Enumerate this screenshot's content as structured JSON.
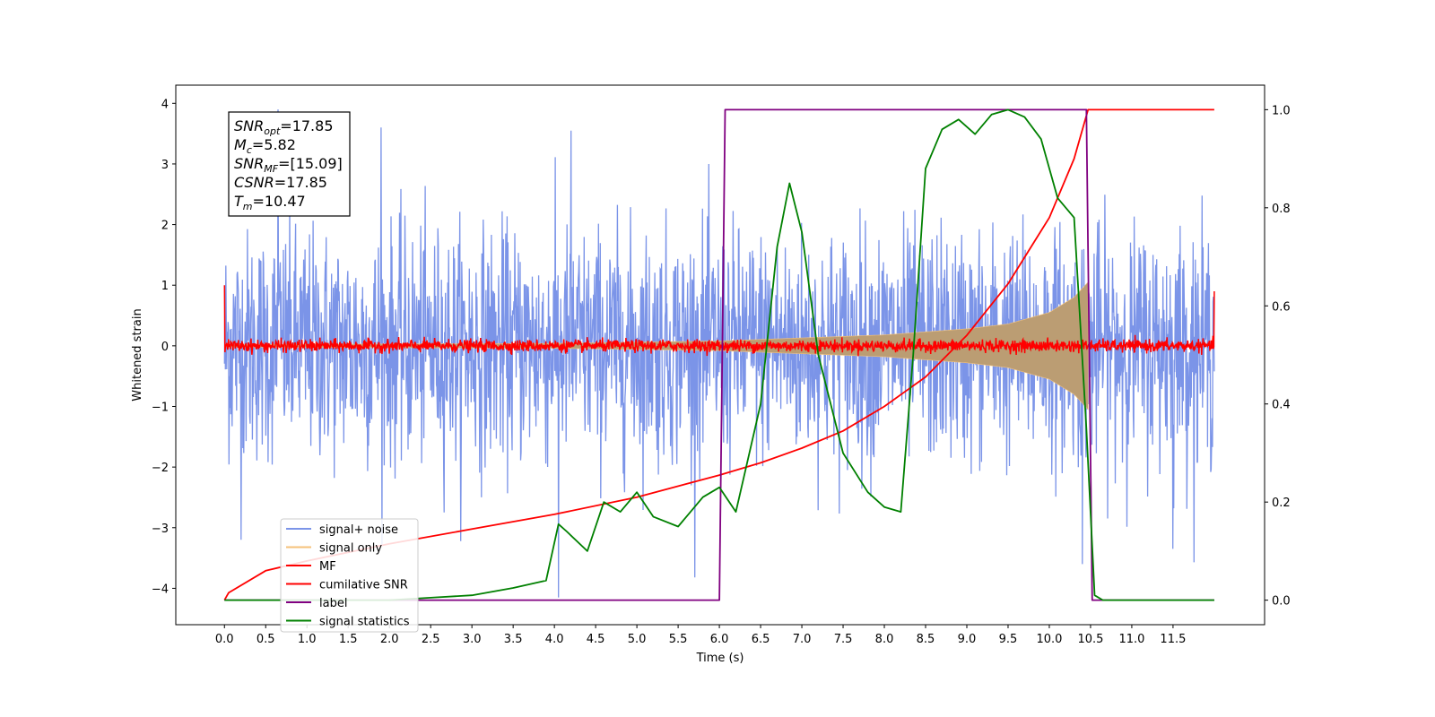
{
  "chart_data": {
    "type": "line",
    "xlabel": "Time (s)",
    "ylabel_left": "Whitened strain",
    "ylabel_right": "",
    "xlim": [
      -0.59,
      12.61
    ],
    "ylim_left": [
      -4.6,
      4.3
    ],
    "ylim_right": [
      -0.05,
      1.05
    ],
    "x_ticks": [
      "0.0",
      "0.5",
      "1.0",
      "1.5",
      "2.0",
      "2.5",
      "3.0",
      "3.5",
      "4.0",
      "4.5",
      "5.0",
      "5.5",
      "6.0",
      "6.5",
      "7.0",
      "7.5",
      "8.0",
      "8.5",
      "9.0",
      "9.5",
      "10.0",
      "10.5",
      "11.0",
      "11.5"
    ],
    "y_ticks_left": [
      "4",
      "3",
      "2",
      "1",
      "0",
      "−1",
      "−2",
      "−3",
      "−4"
    ],
    "y_ticks_right": [
      "1.0",
      "0.8",
      "0.6",
      "0.4",
      "0.2",
      "0.0"
    ],
    "grid": false,
    "legend_position": "lower-left",
    "annotation": {
      "lines": [
        {
          "sym": "SNR",
          "sub": "opt",
          "value": "=17.85"
        },
        {
          "sym": "M",
          "sub": "c",
          "value": "=5.82"
        },
        {
          "sym": "SNR",
          "sub": "MF",
          "value": "=[15.09]"
        },
        {
          "sym": "CSNR",
          "sub": "",
          "value": "=17.85"
        },
        {
          "sym": "T",
          "sub": "m",
          "value": "=10.47"
        }
      ]
    },
    "series": [
      {
        "name": "signal+ noise",
        "color": "#7b94e8",
        "axis": "left",
        "kind": "noise",
        "x_range": [
          0,
          12
        ],
        "sigma": 0.95,
        "spikes": [
          [
            0.65,
            3.9
          ],
          [
            4.05,
            -4.15
          ],
          [
            1.9,
            3.6
          ],
          [
            4.2,
            3.55
          ],
          [
            10.4,
            -3.6
          ],
          [
            0.2,
            -3.2
          ],
          [
            11.5,
            -3.35
          ]
        ]
      },
      {
        "name": "signal only",
        "color": "#f5c27a",
        "axis": "left",
        "kind": "chirp_envelope",
        "x_range": [
          0,
          10.47
        ],
        "envelope": [
          [
            0,
            0.02
          ],
          [
            4.0,
            0.04
          ],
          [
            6.0,
            0.08
          ],
          [
            8.0,
            0.18
          ],
          [
            9.0,
            0.28
          ],
          [
            9.5,
            0.36
          ],
          [
            10.0,
            0.55
          ],
          [
            10.3,
            0.8
          ],
          [
            10.47,
            1.05
          ]
        ]
      },
      {
        "name": "MF",
        "color": "#ff0000",
        "axis": "left",
        "kind": "noise",
        "x_range": [
          0,
          12
        ],
        "sigma": 0.05,
        "edges": [
          [
            0,
            1.0
          ],
          [
            12,
            0.9
          ]
        ]
      },
      {
        "name": "cumilative SNR",
        "color": "#ff0000",
        "axis": "right",
        "kind": "line",
        "x": [
          0.0,
          0.05,
          0.5,
          1.0,
          2.0,
          3.0,
          4.0,
          5.0,
          6.0,
          6.5,
          7.0,
          7.5,
          8.0,
          8.5,
          9.0,
          9.5,
          10.0,
          10.3,
          10.47,
          12.0
        ],
        "y": [
          0.0,
          0.015,
          0.06,
          0.08,
          0.115,
          0.145,
          0.175,
          0.21,
          0.255,
          0.28,
          0.31,
          0.345,
          0.395,
          0.455,
          0.54,
          0.645,
          0.78,
          0.9,
          1.0,
          1.0
        ]
      },
      {
        "name": "label",
        "color": "#800080",
        "axis": "right",
        "kind": "line",
        "x": [
          0.0,
          6.0,
          6.07,
          10.45,
          10.52,
          12.0
        ],
        "y": [
          0.0,
          0.0,
          1.0,
          1.0,
          0.0,
          0.0
        ]
      },
      {
        "name": "signal statistics",
        "color": "#008000",
        "axis": "right",
        "kind": "line",
        "x": [
          0.0,
          1.0,
          2.0,
          2.5,
          3.0,
          3.5,
          3.9,
          4.05,
          4.15,
          4.4,
          4.6,
          4.8,
          5.0,
          5.2,
          5.5,
          5.8,
          6.0,
          6.2,
          6.5,
          6.7,
          6.85,
          7.0,
          7.2,
          7.5,
          7.8,
          8.0,
          8.2,
          8.35,
          8.5,
          8.7,
          8.9,
          9.1,
          9.3,
          9.5,
          9.7,
          9.9,
          10.1,
          10.3,
          10.45,
          10.55,
          10.65,
          11.0,
          12.0
        ],
        "y": [
          0.0,
          0.0,
          0.0,
          0.005,
          0.01,
          0.025,
          0.04,
          0.155,
          0.14,
          0.1,
          0.2,
          0.18,
          0.22,
          0.17,
          0.15,
          0.21,
          0.23,
          0.18,
          0.4,
          0.72,
          0.85,
          0.75,
          0.5,
          0.3,
          0.22,
          0.19,
          0.18,
          0.5,
          0.88,
          0.96,
          0.98,
          0.95,
          0.99,
          1.0,
          0.985,
          0.94,
          0.82,
          0.78,
          0.35,
          0.01,
          0.0,
          0.0,
          0.0
        ]
      }
    ]
  }
}
